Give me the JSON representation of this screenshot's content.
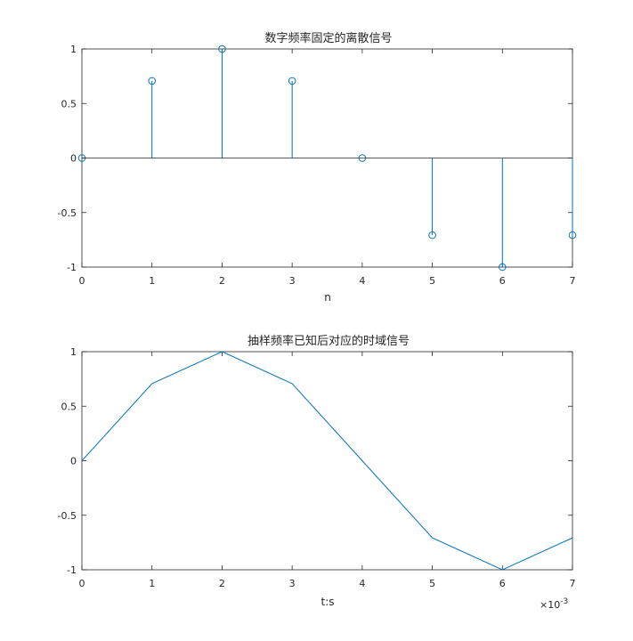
{
  "chart_data": [
    {
      "type": "stem",
      "title": "数字频率固定的离散信号",
      "xlabel": "n",
      "ylabel": "",
      "x": [
        0,
        1,
        2,
        3,
        4,
        5,
        6,
        7
      ],
      "values": [
        0,
        0.7071,
        1,
        0.7071,
        0,
        -0.7071,
        -1,
        -0.7071
      ],
      "xlim": [
        0,
        7
      ],
      "ylim": [
        -1,
        1
      ],
      "xticks": [
        "0",
        "1",
        "2",
        "3",
        "4",
        "5",
        "6",
        "7"
      ],
      "yticks": [
        "-1",
        "-0.5",
        "0",
        "0.5",
        "1"
      ],
      "grid": false,
      "color": "#0072BD"
    },
    {
      "type": "line",
      "title": "抽样频率已知后对应的时域信号",
      "xlabel": "t:s",
      "ylabel": "",
      "x": [
        0,
        0.001,
        0.002,
        0.003,
        0.004,
        0.005,
        0.006,
        0.007
      ],
      "values": [
        0,
        0.7071,
        1,
        0.7071,
        0,
        -0.7071,
        -1,
        -0.7071
      ],
      "xlim": [
        0,
        0.007
      ],
      "ylim": [
        -1,
        1
      ],
      "xticks": [
        "0",
        "1",
        "2",
        "3",
        "4",
        "5",
        "6",
        "7"
      ],
      "yticks": [
        "-1",
        "-0.5",
        "0",
        "0.5",
        "1"
      ],
      "x_exponent_base": "×10",
      "x_exponent": "-3",
      "grid": false,
      "color": "#0072BD"
    }
  ]
}
